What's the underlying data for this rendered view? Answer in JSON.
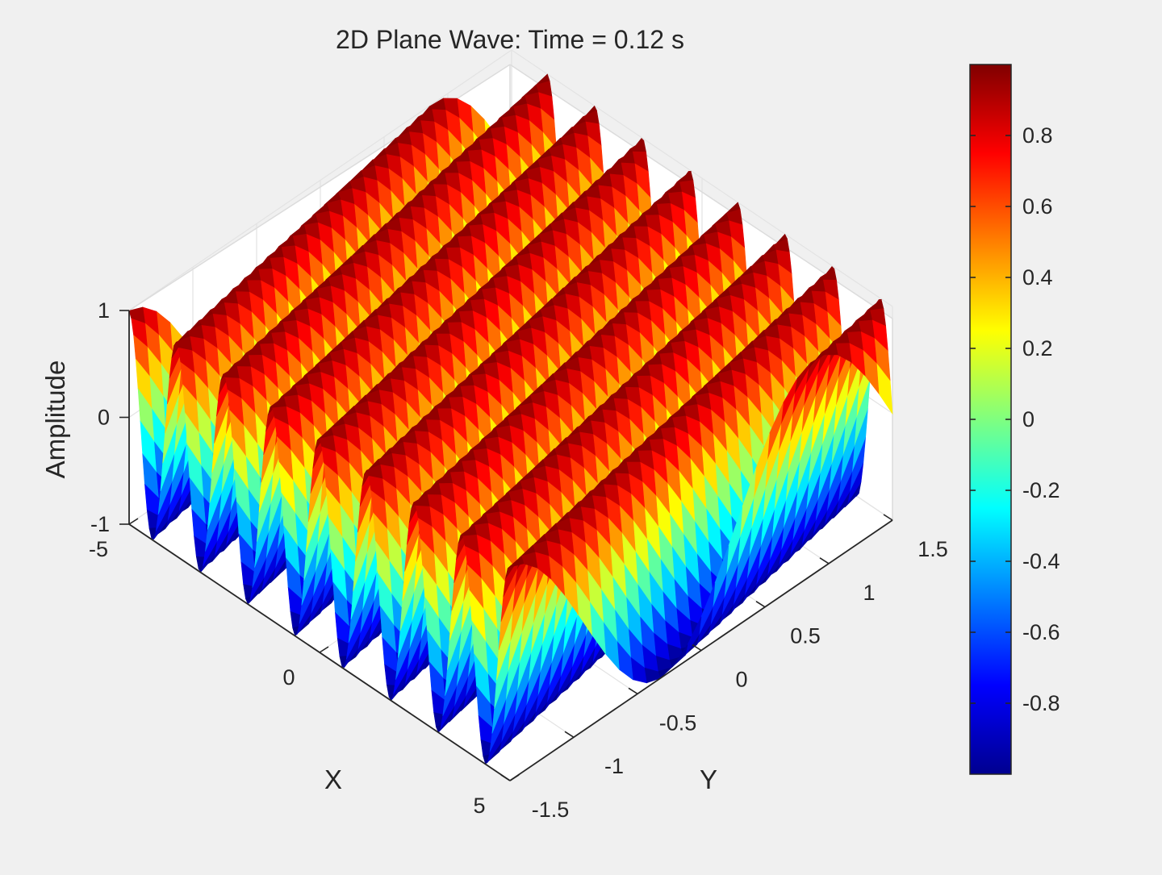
{
  "chart_data": {
    "type": "surface",
    "title": "2D Plane Wave: Time = 0.12 s",
    "xlabel": "X",
    "ylabel": "Y",
    "zlabel": "Amplitude",
    "xlim": [
      -5,
      5
    ],
    "ylim": [
      -1.5,
      1.5
    ],
    "zlim": [
      -1,
      1
    ],
    "x_ticks": [
      -5,
      0,
      5
    ],
    "y_ticks": [
      -1.5,
      -1,
      -0.5,
      0,
      0.5,
      1,
      1.5
    ],
    "z_ticks": [
      -1,
      0,
      1
    ],
    "x_tick_labels": [
      "-5",
      "0",
      "5"
    ],
    "y_tick_labels": [
      "-1.5",
      "-1",
      "-0.5",
      "0",
      "0.5",
      "1",
      "1.5"
    ],
    "z_tick_labels": [
      "-1",
      "0",
      "1"
    ],
    "surface": {
      "function": "Z = sin(kx*X + ky*Y - w*t)",
      "time": 0.12,
      "amplitude": 1,
      "peaks_across_x": 8
    },
    "colorbar": {
      "colormap": "jet",
      "range": [
        -1,
        1
      ],
      "ticks": [
        -0.8,
        -0.6,
        -0.4,
        -0.2,
        0,
        0.2,
        0.4,
        0.6,
        0.8
      ],
      "tick_labels": [
        "-0.8",
        "-0.6",
        "-0.4",
        "-0.2",
        "0",
        "0.2",
        "0.4",
        "0.6",
        "0.8"
      ]
    },
    "grid": true,
    "view": "3d"
  }
}
